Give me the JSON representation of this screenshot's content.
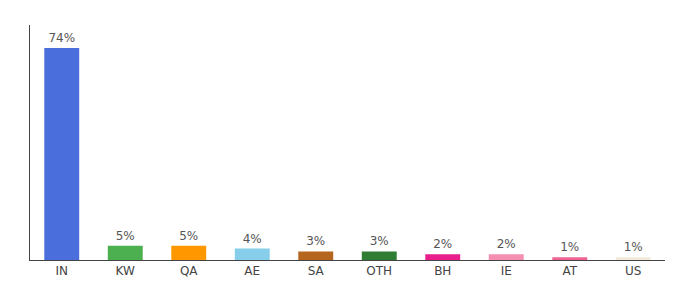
{
  "chart_data": {
    "type": "bar",
    "categories": [
      "IN",
      "KW",
      "QA",
      "AE",
      "SA",
      "OTH",
      "BH",
      "IE",
      "AT",
      "US"
    ],
    "values": [
      74,
      5,
      5,
      4,
      3,
      3,
      2,
      2,
      1,
      1
    ],
    "value_labels": [
      "74%",
      "5%",
      "5%",
      "4%",
      "3%",
      "3%",
      "2%",
      "2%",
      "1%",
      "1%"
    ],
    "colors": [
      "#4a6fdc",
      "#4caf50",
      "#ff9800",
      "#87ceeb",
      "#b5651d",
      "#2e7d32",
      "#e91e8c",
      "#f48fb1",
      "#f06292",
      "#f0ead6"
    ],
    "ylim": [
      0,
      82
    ],
    "yticks": [],
    "tick_labels": "x",
    "data_labels": true,
    "grid": false
  }
}
